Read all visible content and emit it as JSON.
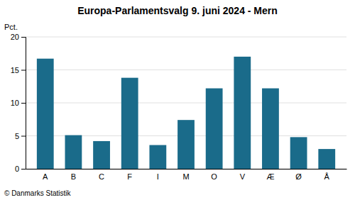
{
  "chart_data": {
    "type": "bar",
    "title": "Europa-Parlamentsvalg 9. juni 2024 - Mern",
    "y_label": "Pct.",
    "annotations": [
      "© Danmarks Statistik"
    ],
    "categories": [
      "A",
      "B",
      "C",
      "F",
      "I",
      "M",
      "O",
      "V",
      "Æ",
      "Ø",
      "Å"
    ],
    "values": [
      16.7,
      5.1,
      4.2,
      13.8,
      3.6,
      7.4,
      12.2,
      17.0,
      12.2,
      4.8,
      3.0
    ],
    "color": "#1a6b8a",
    "ylim": [
      0,
      20
    ],
    "yticks": [
      0,
      5,
      10,
      15,
      20
    ],
    "grid": true
  }
}
